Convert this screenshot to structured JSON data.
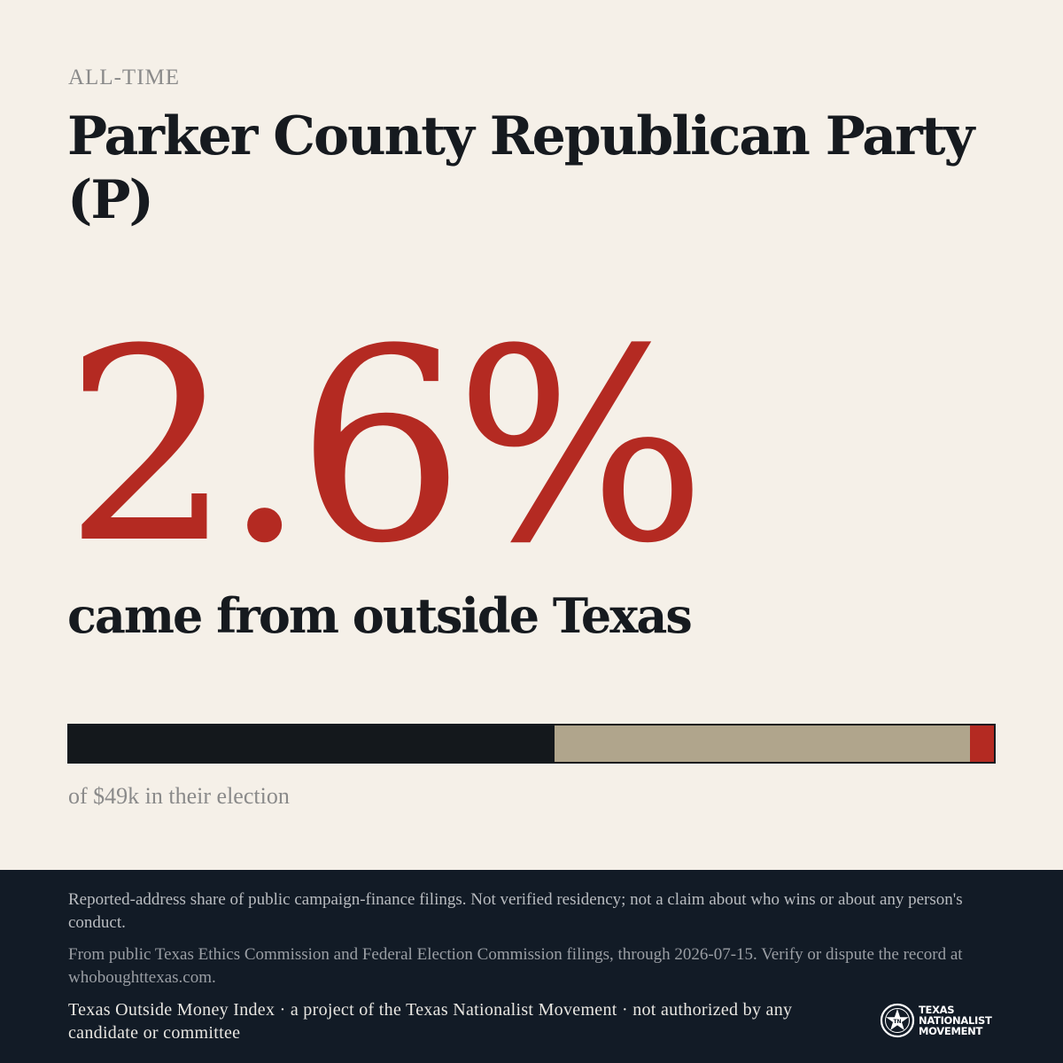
{
  "header": {
    "eyebrow": "ALL-TIME",
    "title": "Parker County Republican Party (P)"
  },
  "headline": {
    "value": "2.6%",
    "subtext": "came from outside Texas"
  },
  "bar": {
    "segments": [
      {
        "key": "dark",
        "share": 0.525,
        "color": "#14181c"
      },
      {
        "key": "tan",
        "share": 0.449,
        "color": "#b0a58c"
      },
      {
        "key": "outside",
        "share": 0.026,
        "color": "#b42a22"
      }
    ]
  },
  "caption": "of $49k in their election",
  "footer": {
    "note": "Reported-address share of public campaign-finance filings. Not verified residency; not a claim about who wins or about any person's conduct.",
    "source": "From public Texas Ethics Commission and Federal Election Commission filings, through 2026-07-15. Verify or dispute the record at whoboughttexas.com.",
    "credit": "Texas Outside Money Index · a project of the Texas Nationalist Movement · not authorized by any candidate or committee"
  },
  "logo": {
    "line1": "TEXAS",
    "line2": "NATIONALIST",
    "line3": "MOVEMENT",
    "icon": "star-seal-icon"
  }
}
